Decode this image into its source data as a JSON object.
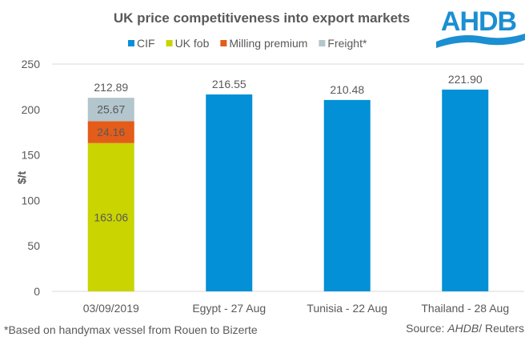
{
  "logo_text": "AHDB",
  "footnote": "*Based on handymax vessel from Rouen to Bizerte",
  "source_prefix": "Source: ",
  "source_italic": "AHDB",
  "source_suffix": "/ Reuters",
  "colors": {
    "CIF": "#0390d6",
    "UK fob": "#c9d400",
    "Milling premium": "#e45c1a",
    "Freight*": "#b3c5cd",
    "text": "#595959",
    "logo": "#1b8fd2"
  },
  "chart_data": {
    "type": "bar",
    "stacked": true,
    "title": "UK price competitiveness into export markets",
    "ylabel": "$/t",
    "xlabel": "",
    "ylim": [
      0,
      250
    ],
    "yticks": [
      0,
      50,
      100,
      150,
      200,
      250
    ],
    "legend_position": "top",
    "categories": [
      "03/09/2019",
      "Egypt - 27 Aug",
      "Tunisia - 22 Aug",
      "Thailand - 28 Aug"
    ],
    "series": [
      {
        "name": "CIF",
        "values": [
          null,
          216.55,
          210.48,
          221.9
        ],
        "labels": [
          "",
          "216.55",
          "210.48",
          "221.90"
        ]
      },
      {
        "name": "UK fob",
        "values": [
          163.06,
          null,
          null,
          null
        ],
        "labels": [
          "163.06",
          "",
          "",
          ""
        ]
      },
      {
        "name": "Milling premium",
        "values": [
          24.16,
          null,
          null,
          null
        ],
        "labels": [
          "24.16",
          "",
          "",
          ""
        ]
      },
      {
        "name": "Freight*",
        "values": [
          25.67,
          null,
          null,
          null
        ],
        "labels": [
          "25.67",
          "",
          "",
          ""
        ]
      }
    ],
    "totals": [
      "212.89",
      null,
      null,
      null
    ]
  }
}
